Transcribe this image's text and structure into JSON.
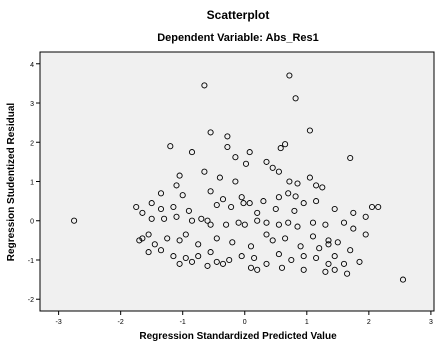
{
  "chart_data": {
    "type": "scatter",
    "title": "Scatterplot",
    "subtitle": "Dependent Variable: Abs_Res1",
    "xlabel": "Regression Standardized Predicted Value",
    "ylabel": "Regression Studentized Residual",
    "xlim": [
      -3.3,
      3.05
    ],
    "ylim": [
      -2.3,
      4.3
    ],
    "xticks": [
      "-3",
      "-2",
      "-1",
      "0",
      "1",
      "2",
      "3"
    ],
    "yticks": [
      "4",
      "3",
      "2",
      "1",
      "0",
      "-1",
      "-2"
    ],
    "grid": false,
    "legend": "none",
    "colors": {
      "plot_background": "#F0F0F0",
      "marker_stroke": "#000000"
    },
    "points": [
      [
        -2.75,
        0.0
      ],
      [
        -0.65,
        3.45
      ],
      [
        0.72,
        3.7
      ],
      [
        0.82,
        3.12
      ],
      [
        -0.55,
        2.25
      ],
      [
        -0.28,
        2.15
      ],
      [
        0.08,
        1.75
      ],
      [
        0.58,
        1.85
      ],
      [
        1.05,
        2.3
      ],
      [
        -1.2,
        1.9
      ],
      [
        -0.85,
        1.75
      ],
      [
        -0.28,
        1.88
      ],
      [
        -0.15,
        1.62
      ],
      [
        0.65,
        1.95
      ],
      [
        0.35,
        1.5
      ],
      [
        0.45,
        1.35
      ],
      [
        1.7,
        1.6
      ],
      [
        -0.65,
        1.25
      ],
      [
        0.55,
        1.25
      ],
      [
        -1.05,
        1.15
      ],
      [
        0.02,
        1.45
      ],
      [
        -0.4,
        1.1
      ],
      [
        -1.1,
        0.9
      ],
      [
        -0.15,
        1.0
      ],
      [
        0.72,
        1.0
      ],
      [
        0.85,
        0.95
      ],
      [
        1.05,
        1.1
      ],
      [
        1.15,
        0.9
      ],
      [
        1.25,
        0.85
      ],
      [
        -1.0,
        0.65
      ],
      [
        -0.55,
        0.75
      ],
      [
        -0.35,
        0.55
      ],
      [
        -1.35,
        0.7
      ],
      [
        0.3,
        0.5
      ],
      [
        0.55,
        0.6
      ],
      [
        0.7,
        0.7
      ],
      [
        0.82,
        0.62
      ],
      [
        1.15,
        0.5
      ],
      [
        -1.75,
        0.35
      ],
      [
        -1.65,
        0.2
      ],
      [
        -1.5,
        0.45
      ],
      [
        -1.35,
        0.3
      ],
      [
        -1.15,
        0.35
      ],
      [
        -0.9,
        0.25
      ],
      [
        -0.45,
        0.4
      ],
      [
        -0.22,
        0.35
      ],
      [
        -0.05,
        0.6
      ],
      [
        -0.02,
        0.45
      ],
      [
        0.08,
        0.45
      ],
      [
        0.2,
        0.2
      ],
      [
        0.5,
        0.3
      ],
      [
        0.8,
        0.25
      ],
      [
        0.95,
        0.45
      ],
      [
        1.45,
        0.3
      ],
      [
        1.75,
        0.2
      ],
      [
        1.95,
        0.1
      ],
      [
        2.05,
        0.35
      ],
      [
        2.15,
        0.35
      ],
      [
        -1.5,
        0.05
      ],
      [
        -1.3,
        0.05
      ],
      [
        -1.1,
        0.1
      ],
      [
        -0.85,
        0.0
      ],
      [
        -0.7,
        0.05
      ],
      [
        -0.6,
        0.0
      ],
      [
        -0.55,
        -0.1
      ],
      [
        -0.3,
        -0.1
      ],
      [
        -0.1,
        -0.05
      ],
      [
        0.0,
        -0.1
      ],
      [
        0.2,
        0.0
      ],
      [
        0.35,
        -0.05
      ],
      [
        0.55,
        -0.1
      ],
      [
        0.7,
        -0.05
      ],
      [
        0.85,
        -0.15
      ],
      [
        1.1,
        -0.05
      ],
      [
        1.3,
        -0.1
      ],
      [
        1.6,
        -0.05
      ],
      [
        1.75,
        -0.2
      ],
      [
        1.95,
        -0.35
      ],
      [
        -1.7,
        -0.5
      ],
      [
        -1.65,
        -0.45
      ],
      [
        -1.55,
        -0.35
      ],
      [
        -1.45,
        -0.6
      ],
      [
        -1.25,
        -0.45
      ],
      [
        -1.05,
        -0.5
      ],
      [
        -0.95,
        -0.35
      ],
      [
        -0.75,
        -0.6
      ],
      [
        -0.45,
        -0.45
      ],
      [
        -0.2,
        -0.55
      ],
      [
        0.1,
        -0.65
      ],
      [
        0.35,
        -0.35
      ],
      [
        0.45,
        -0.5
      ],
      [
        0.65,
        -0.45
      ],
      [
        0.9,
        -0.65
      ],
      [
        1.1,
        -0.4
      ],
      [
        1.35,
        -0.6
      ],
      [
        1.5,
        -0.55
      ],
      [
        1.7,
        -0.75
      ],
      [
        1.2,
        -0.7
      ],
      [
        -1.55,
        -0.8
      ],
      [
        -1.35,
        -0.75
      ],
      [
        -1.15,
        -0.9
      ],
      [
        -0.95,
        -0.95
      ],
      [
        -0.75,
        -0.9
      ],
      [
        -0.55,
        -0.8
      ],
      [
        -0.45,
        -1.05
      ],
      [
        -0.25,
        -1.0
      ],
      [
        -0.05,
        -0.9
      ],
      [
        0.15,
        -0.95
      ],
      [
        0.35,
        -1.1
      ],
      [
        0.55,
        -0.85
      ],
      [
        0.75,
        -1.0
      ],
      [
        0.95,
        -0.9
      ],
      [
        1.15,
        -0.95
      ],
      [
        1.35,
        -1.1
      ],
      [
        1.45,
        -0.9
      ],
      [
        1.6,
        -1.1
      ],
      [
        1.85,
        -1.05
      ],
      [
        -1.05,
        -1.1
      ],
      [
        -0.85,
        -1.05
      ],
      [
        -0.6,
        -1.15
      ],
      [
        0.2,
        -1.25
      ],
      [
        0.6,
        -1.2
      ],
      [
        0.95,
        -1.25
      ],
      [
        1.3,
        -1.3
      ],
      [
        1.45,
        -1.25
      ],
      [
        1.65,
        -1.35
      ],
      [
        0.1,
        -1.2
      ],
      [
        -0.35,
        -1.1
      ],
      [
        2.55,
        -1.5
      ],
      [
        1.35,
        -0.5
      ]
    ]
  }
}
